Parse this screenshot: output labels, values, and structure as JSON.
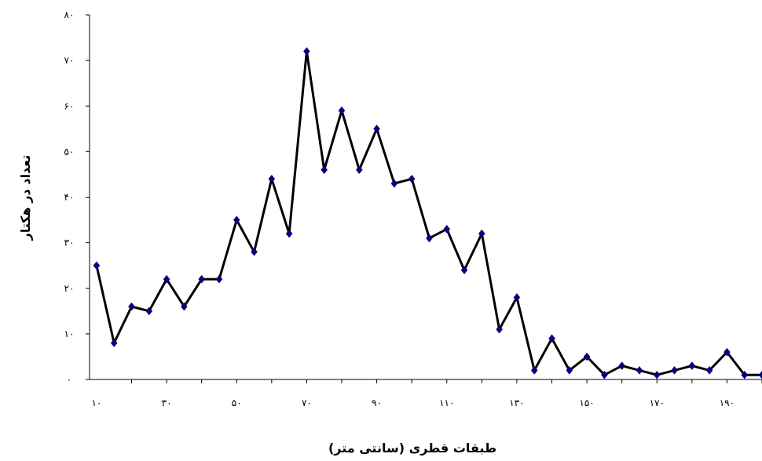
{
  "chart_data": {
    "type": "line",
    "title": "",
    "xlabel": "طبقات قطری (سانتی متر)",
    "ylabel": "تعداد در هکتار",
    "x": [
      10,
      15,
      20,
      25,
      30,
      35,
      40,
      45,
      50,
      55,
      60,
      65,
      70,
      75,
      80,
      85,
      90,
      95,
      100,
      105,
      110,
      115,
      120,
      125,
      130,
      135,
      140,
      145,
      150,
      155,
      160,
      165,
      170,
      175,
      180,
      185,
      190,
      195,
      200
    ],
    "series": [
      {
        "values": [
          25,
          8,
          16,
          15,
          22,
          16,
          22,
          22,
          35,
          28,
          44,
          32,
          72,
          46,
          59,
          46,
          55,
          43,
          44,
          31,
          33,
          24,
          32,
          11,
          18,
          2,
          9,
          2,
          5,
          1,
          3,
          2,
          1,
          2,
          3,
          2,
          6,
          1,
          1
        ],
        "color": "#000000",
        "marker_color": "#00008b"
      }
    ],
    "xlim": [
      8,
      200
    ],
    "ylim": [
      0,
      80
    ],
    "x_tick_values": [
      10,
      30,
      50,
      70,
      90,
      110,
      130,
      150,
      170,
      190
    ],
    "x_tick_labels": [
      "۱۰",
      "۳۰",
      "۵۰",
      "۷۰",
      "۹۰",
      "۱۱۰",
      "۱۳۰",
      "۱۵۰",
      "۱۷۰",
      "۱۹۰"
    ],
    "y_tick_values": [
      0,
      10,
      20,
      30,
      40,
      50,
      60,
      70,
      80
    ],
    "y_tick_labels": [
      "۰",
      "۱۰",
      "۲۰",
      "۳۰",
      "۴۰",
      "۵۰",
      "۶۰",
      "۷۰",
      "۸۰"
    ],
    "grid": false,
    "legend": "none"
  }
}
